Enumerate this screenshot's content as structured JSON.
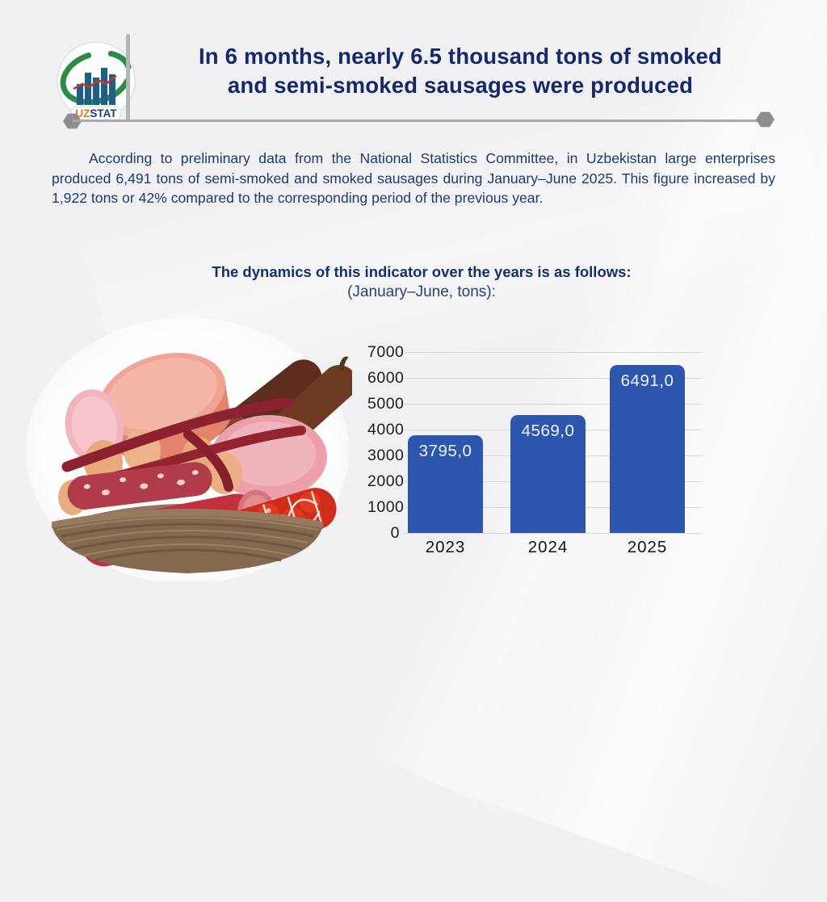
{
  "header": {
    "logo": {
      "uz": "UZ",
      "stat": "STAT",
      "name": "UZSTAT logo"
    },
    "title_lines": [
      "In 6 months, nearly 6.5 thousand tons of smoked",
      "and semi-smoked sausages were produced"
    ]
  },
  "body_text": {
    "paragraph": "According to preliminary data from the National Statistics Committee, in Uzbekistan large enterprises produced 6,491 tons of semi-smoked and smoked sausages during January–June 2025. This figure increased by 1,922 tons or 42% compared to the corresponding period of the previous year."
  },
  "section": {
    "subtitle": "The dynamics of this indicator over the years is as follows:",
    "note": "(January–June, tons):"
  },
  "chart_data": {
    "type": "bar",
    "title": "The dynamics of this indicator over the years is as follows: (January–June, tons)",
    "categories": [
      "2023",
      "2024",
      "2025"
    ],
    "values": [
      3795.0,
      4569.0,
      6491.0
    ],
    "value_labels": [
      "3795,0",
      "4569,0",
      "6491,0"
    ],
    "xlabel": "",
    "ylabel": "",
    "ylim": [
      0,
      7000
    ],
    "ytick_step": 1000,
    "grid": true,
    "legend": "none",
    "bar_color": "#2d57ae",
    "bar_label_color": "#eef3fb",
    "tick_color": "#1c1c1c"
  },
  "colors": {
    "title_navy": "#13296b",
    "body_navy": "#1d3a6e",
    "divider_gray": "#a8a8a8",
    "background": "#f1f1f3",
    "logo_green": "#2e8b45",
    "logo_bar_blue": "#1c5f8a",
    "logo_uz_orange": "#e87722",
    "logo_line_red": "#c0392b"
  }
}
